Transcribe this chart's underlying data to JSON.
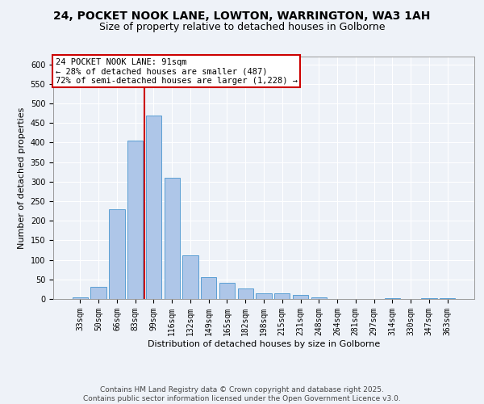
{
  "title_line1": "24, POCKET NOOK LANE, LOWTON, WARRINGTON, WA3 1AH",
  "title_line2": "Size of property relative to detached houses in Golborne",
  "xlabel": "Distribution of detached houses by size in Golborne",
  "ylabel": "Number of detached properties",
  "bar_labels": [
    "33sqm",
    "50sqm",
    "66sqm",
    "83sqm",
    "99sqm",
    "116sqm",
    "132sqm",
    "149sqm",
    "165sqm",
    "182sqm",
    "198sqm",
    "215sqm",
    "231sqm",
    "248sqm",
    "264sqm",
    "281sqm",
    "297sqm",
    "314sqm",
    "330sqm",
    "347sqm",
    "363sqm"
  ],
  "bar_values": [
    5,
    30,
    230,
    405,
    470,
    310,
    112,
    55,
    42,
    27,
    15,
    15,
    10,
    4,
    0,
    0,
    0,
    3,
    0,
    3,
    3
  ],
  "bar_color": "#aec6e8",
  "bar_edge_color": "#5a9fd4",
  "vline_x": 3.5,
  "vline_color": "#cc0000",
  "annotation_text": "24 POCKET NOOK LANE: 91sqm\n← 28% of detached houses are smaller (487)\n72% of semi-detached houses are larger (1,228) →",
  "annotation_box_color": "#ffffff",
  "annotation_box_edge": "#cc0000",
  "ylim": [
    0,
    620
  ],
  "yticks": [
    0,
    50,
    100,
    150,
    200,
    250,
    300,
    350,
    400,
    450,
    500,
    550,
    600
  ],
  "background_color": "#eef2f8",
  "grid_color": "#ffffff",
  "footer_text": "Contains HM Land Registry data © Crown copyright and database right 2025.\nContains public sector information licensed under the Open Government Licence v3.0.",
  "title_fontsize": 10,
  "subtitle_fontsize": 9,
  "axis_label_fontsize": 8,
  "tick_fontsize": 7,
  "annotation_fontsize": 7.5,
  "footer_fontsize": 6.5
}
